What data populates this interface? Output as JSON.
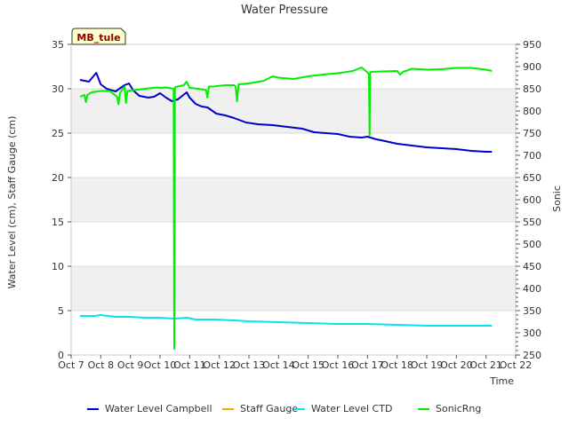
{
  "chart_data": {
    "type": "line",
    "title": "Water Pressure",
    "xlabel": "Time",
    "ylabel": "Water Level (cm), Staff Gauge (cm)",
    "y2label": "Sonic",
    "station_label": "MB_tule",
    "x_ticks": [
      "Oct 7",
      "Oct 8",
      "Oct 9",
      "Oct 10",
      "Oct 11",
      "Oct 12",
      "Oct 13",
      "Oct 14",
      "Oct 15",
      "Oct 16",
      "Oct 17",
      "Oct 18",
      "Oct 19",
      "Oct 20",
      "Oct 21",
      "Oct 22"
    ],
    "xlim": [
      7,
      22
    ],
    "ylim": [
      0,
      35
    ],
    "y_ticks": [
      0,
      5,
      10,
      15,
      20,
      25,
      30,
      35
    ],
    "y2lim": [
      250,
      950
    ],
    "y2_ticks": [
      250,
      300,
      350,
      400,
      450,
      500,
      550,
      600,
      650,
      700,
      750,
      800,
      850,
      900,
      950
    ],
    "grid": true,
    "legend_position": "bottom",
    "series": [
      {
        "name": "Water Level Campbell",
        "axis": "left",
        "color": "#0000cc",
        "x": [
          7.3,
          7.6,
          7.85,
          8.0,
          8.2,
          8.5,
          8.8,
          8.95,
          9.1,
          9.3,
          9.6,
          9.8,
          10.0,
          10.2,
          10.4,
          10.6,
          10.9,
          11.0,
          11.2,
          11.4,
          11.6,
          11.9,
          12.2,
          12.5,
          12.9,
          13.3,
          13.8,
          14.3,
          14.8,
          15.2,
          15.6,
          16.0,
          16.4,
          16.8,
          17.0,
          17.3,
          17.6,
          18.0,
          18.5,
          19.0,
          19.5,
          20.0,
          20.5,
          21.0,
          21.2
        ],
        "y": [
          31.0,
          30.8,
          31.8,
          30.5,
          30.0,
          29.7,
          30.4,
          30.6,
          29.8,
          29.2,
          29.0,
          29.1,
          29.5,
          29.0,
          28.6,
          28.8,
          29.6,
          29.0,
          28.3,
          28.0,
          27.9,
          27.2,
          27.0,
          26.7,
          26.2,
          26.0,
          25.9,
          25.7,
          25.5,
          25.1,
          25.0,
          24.9,
          24.6,
          24.5,
          24.6,
          24.3,
          24.1,
          23.8,
          23.6,
          23.4,
          23.3,
          23.2,
          23.0,
          22.9,
          22.9
        ]
      },
      {
        "name": "Staff Gauge",
        "axis": "left",
        "color": "#ffa500",
        "x": [],
        "y": []
      },
      {
        "name": "Water Level CTD",
        "axis": "left",
        "color": "#00e5ee",
        "x": [
          7.3,
          7.8,
          8.0,
          8.5,
          9.0,
          9.5,
          10.0,
          10.5,
          10.9,
          11.2,
          11.8,
          12.5,
          13.0,
          14.0,
          15.0,
          16.0,
          17.0,
          18.0,
          19.0,
          20.0,
          21.0,
          21.2
        ],
        "y": [
          4.4,
          4.4,
          4.5,
          4.3,
          4.3,
          4.2,
          4.2,
          4.1,
          4.2,
          4.0,
          4.0,
          3.9,
          3.8,
          3.7,
          3.6,
          3.5,
          3.5,
          3.4,
          3.3,
          3.3,
          3.3,
          3.3
        ]
      },
      {
        "name": "SonicRng",
        "axis": "right",
        "color": "#00ee00",
        "x": [
          7.3,
          7.45,
          7.5,
          7.55,
          7.7,
          8.0,
          8.3,
          8.55,
          8.6,
          8.65,
          8.8,
          8.85,
          8.9,
          9.0,
          9.5,
          9.9,
          10.0,
          10.2,
          10.46,
          10.48,
          10.5,
          10.52,
          10.6,
          10.8,
          10.9,
          11.0,
          11.3,
          11.55,
          11.6,
          11.65,
          11.8,
          12.2,
          12.5,
          12.55,
          12.6,
          12.65,
          13.0,
          13.5,
          13.8,
          14.0,
          14.5,
          15.0,
          15.5,
          16.0,
          16.5,
          16.8,
          17.0,
          17.05,
          17.07,
          17.09,
          17.12,
          17.5,
          18.0,
          18.1,
          18.2,
          18.5,
          19.0,
          19.5,
          20.0,
          20.5,
          21.0,
          21.2
        ],
        "y": [
          832,
          836,
          820,
          836,
          842,
          845,
          845,
          832,
          815,
          840,
          855,
          818,
          845,
          846,
          850,
          853,
          852,
          853,
          850,
          264,
          850,
          854,
          855,
          858,
          866,
          852,
          850,
          847,
          830,
          855,
          855,
          858,
          858,
          855,
          822,
          860,
          862,
          868,
          878,
          875,
          872,
          878,
          882,
          885,
          890,
          898,
          887,
          882,
          745,
          885,
          888,
          889,
          890,
          882,
          888,
          895,
          893,
          894,
          897,
          897,
          893,
          890
        ]
      }
    ]
  }
}
